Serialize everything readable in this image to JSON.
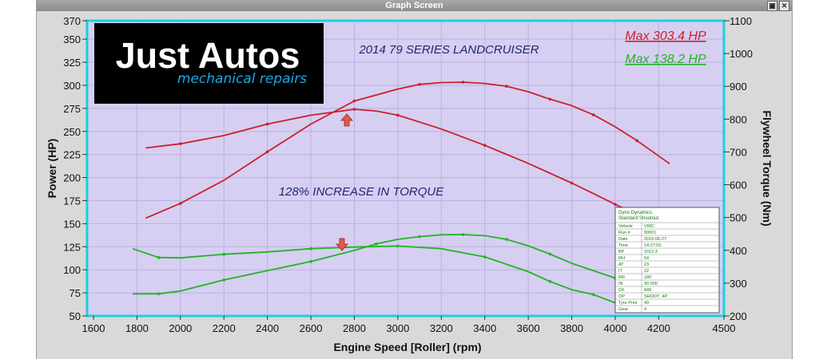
{
  "window": {
    "title": "Graph Screen"
  },
  "logo": {
    "name": "Just Autos",
    "tagline": "mechanical repairs"
  },
  "chart_data": {
    "type": "line",
    "title": "2014 79 SERIES LANDCRUISER",
    "annotation": "128% INCREASE IN TORQUE",
    "xlabel": "Engine Speed [Roller] (rpm)",
    "ylabel_left": "Power (HP)",
    "ylabel_right": "Flywheel Torque (Nm)",
    "xlim": [
      1600,
      4500
    ],
    "ylim_left": [
      50,
      370
    ],
    "ylim_right": [
      200,
      1100
    ],
    "x_ticks": [
      1600,
      1800,
      2000,
      2200,
      2400,
      2600,
      2800,
      3000,
      3200,
      3400,
      3600,
      3800,
      4000,
      4200,
      4500
    ],
    "y_left_ticks": [
      50,
      75,
      100,
      125,
      150,
      175,
      200,
      225,
      250,
      275,
      300,
      325,
      350,
      370
    ],
    "y_right_ticks": [
      200,
      300,
      400,
      500,
      600,
      700,
      800,
      900,
      1000,
      1100
    ],
    "grid": true,
    "max_labels": [
      {
        "text": "Max 303.4 HP",
        "color": "#cc1f2a"
      },
      {
        "text": "Max 138.2 HP",
        "color": "#22b422"
      }
    ],
    "series": [
      {
        "color": "#cc1f2a",
        "axis": "left",
        "x": [
          1840,
          2000,
          2200,
          2400,
          2600,
          2800,
          3000,
          3100,
          3200,
          3300,
          3400,
          3500,
          3600,
          3700,
          3800,
          3900,
          4000,
          4100,
          4250
        ],
        "y": [
          156,
          172,
          197,
          228,
          258,
          283,
          296,
          301,
          303,
          303.4,
          302,
          299,
          293,
          285,
          278,
          268,
          255,
          240,
          215
        ]
      },
      {
        "color": "#cc1f2a",
        "axis": "right",
        "x": [
          1840,
          2000,
          2200,
          2400,
          2600,
          2800,
          2900,
          3000,
          3200,
          3400,
          3600,
          3800,
          3900,
          4000,
          4080
        ],
        "y": [
          712,
          725,
          750,
          785,
          812,
          830,
          825,
          812,
          770,
          720,
          665,
          605,
          573,
          540,
          515
        ]
      },
      {
        "color": "#22b422",
        "axis": "left",
        "x": [
          1780,
          1900,
          2000,
          2200,
          2400,
          2600,
          2800,
          2900,
          3000,
          3100,
          3200,
          3300,
          3400,
          3500,
          3600,
          3700,
          3800,
          4000
        ],
        "y": [
          74,
          74,
          77,
          89,
          99,
          109,
          121,
          128,
          133,
          136,
          138,
          138.2,
          137,
          133,
          126,
          117,
          107,
          91
        ]
      },
      {
        "color": "#22b422",
        "axis": "right",
        "x": [
          1780,
          1900,
          2000,
          2200,
          2400,
          2600,
          2800,
          3000,
          3200,
          3400,
          3600,
          3700,
          3800,
          3900,
          4000
        ],
        "y": [
          405,
          378,
          377,
          388,
          395,
          405,
          410,
          413,
          405,
          380,
          335,
          305,
          280,
          265,
          240
        ]
      }
    ],
    "info_box": {
      "title_lines": [
        "Dyno Dynamics",
        "Standard Shootout."
      ],
      "rows": [
        [
          "Vehicle",
          "VIRC"
        ],
        [
          "Run #",
          "00001"
        ],
        [
          "Date",
          "2016-06-27"
        ],
        [
          "Time",
          "14:27:50"
        ],
        [
          "BP",
          "1012.3"
        ],
        [
          "RH",
          "54"
        ],
        [
          "AT",
          "23"
        ],
        [
          "IT",
          "22"
        ],
        [
          "RR",
          "180"
        ],
        [
          "IN",
          "30.000"
        ],
        [
          "CK",
          "949"
        ],
        [
          "OP",
          "SHOOT .4P"
        ],
        [
          "Tyre Pres",
          "40"
        ],
        [
          "Gear",
          "4"
        ]
      ]
    }
  }
}
